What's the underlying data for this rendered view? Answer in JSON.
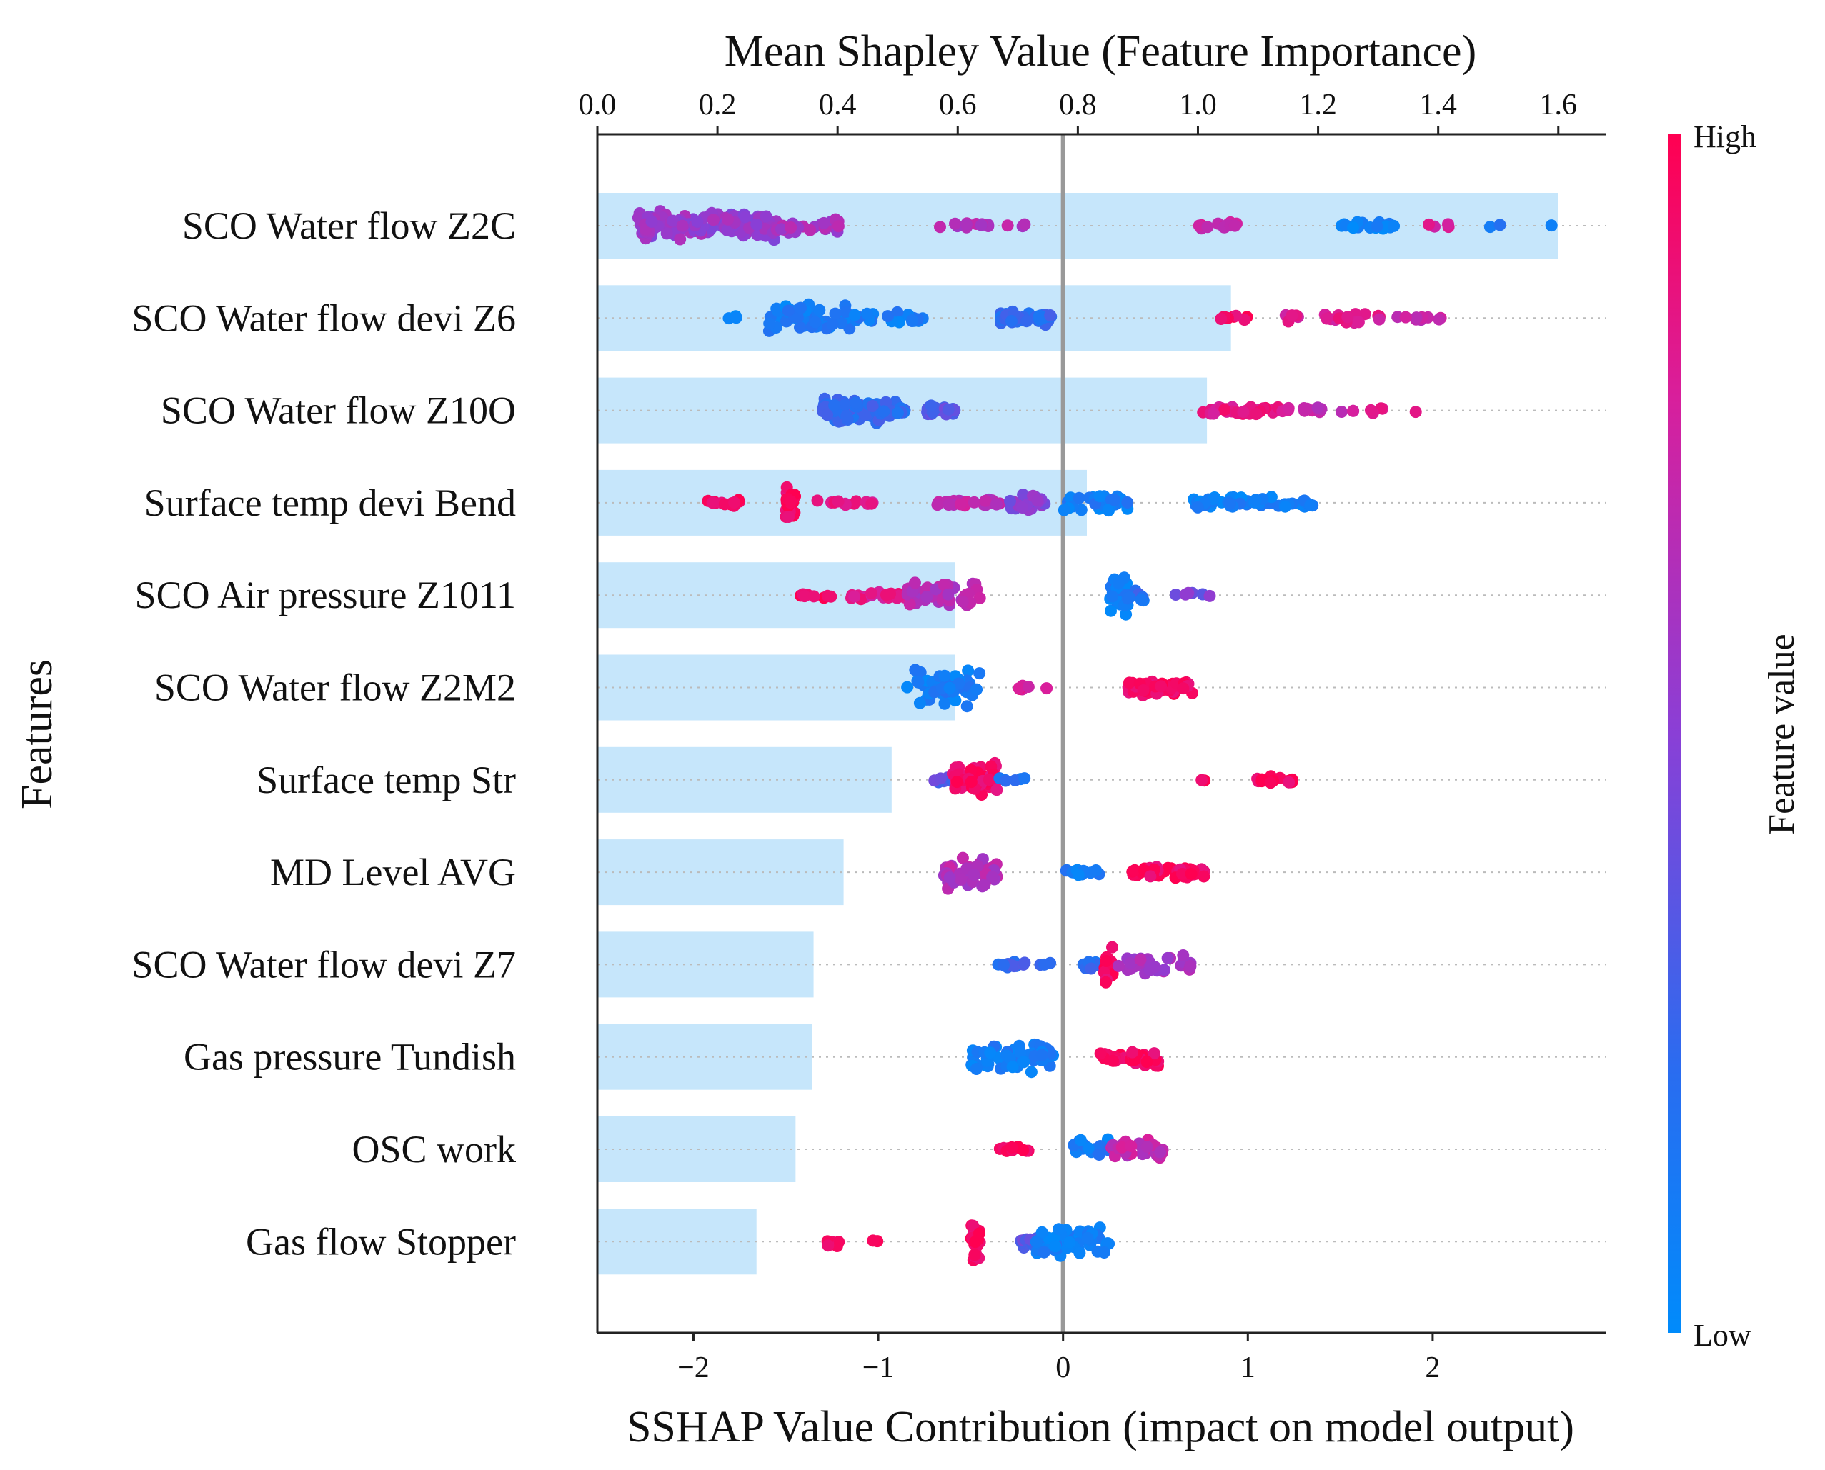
{
  "chart_data": {
    "type": "scatter",
    "variant": "shap-summary-beeswarm-with-mean-bars",
    "top_axis": {
      "label": "Mean Shapley Value (Feature Importance)",
      "ticks": [
        "0.0",
        "0.2",
        "0.4",
        "0.6",
        "0.8",
        "1.0",
        "1.2",
        "1.4",
        "1.6"
      ],
      "range": [
        0,
        1.68
      ]
    },
    "bottom_axis": {
      "label": "SSHAP Value Contribution (impact on model output)",
      "ticks": [
        "−2",
        "−1",
        "0",
        "1",
        "2"
      ],
      "range": [
        -2.52,
        2.94
      ]
    },
    "y_label": "Features",
    "colorbar": {
      "title": "Feature value",
      "high": "High",
      "low": "Low",
      "high_color": "#ff0051",
      "low_color": "#008bfb"
    },
    "bar_color": "#c6e6fb",
    "zero_line_color": "#999999",
    "features": [
      {
        "name": "SCO Water flow Z2C",
        "mean_importance": 1.6,
        "clusters": [
          {
            "x": [
              -2.3,
              -1.55
            ],
            "v": 0.55,
            "n": 130,
            "h": 0.5
          },
          {
            "x": [
              -1.55,
              -1.2
            ],
            "v": 0.6,
            "n": 25,
            "h": 0.3
          },
          {
            "x": [
              -0.7,
              -0.2
            ],
            "v": 0.65,
            "n": 14,
            "h": 0.1
          },
          {
            "x": [
              0.7,
              0.95
            ],
            "v": 0.75,
            "n": 14,
            "h": 0.12
          },
          {
            "x": [
              1.45,
              1.8
            ],
            "v": 0.05,
            "n": 18,
            "h": 0.15
          },
          {
            "x": [
              1.95,
              2.1
            ],
            "v": 0.75,
            "n": 4,
            "h": 0.1
          },
          {
            "x": [
              2.1,
              2.7
            ],
            "v": 0.15,
            "n": 3,
            "h": 0.05
          }
        ]
      },
      {
        "name": "SCO Water flow devi Z6",
        "mean_importance": 1.055,
        "clusters": [
          {
            "x": [
              -1.9,
              -1.75
            ],
            "v": 0.05,
            "n": 3,
            "h": 0.1
          },
          {
            "x": [
              -1.6,
              -1.15
            ],
            "v": 0.1,
            "n": 80,
            "h": 0.45
          },
          {
            "x": [
              -1.15,
              -0.75
            ],
            "v": 0.1,
            "n": 22,
            "h": 0.2
          },
          {
            "x": [
              -0.35,
              -0.05
            ],
            "v": 0.22,
            "n": 40,
            "h": 0.25
          },
          {
            "x": [
              0.85,
              1.0
            ],
            "v": 0.95,
            "n": 8,
            "h": 0.1
          },
          {
            "x": [
              1.2,
              1.75
            ],
            "v": 0.8,
            "n": 25,
            "h": 0.15
          },
          {
            "x": [
              1.75,
              2.05
            ],
            "v": 0.7,
            "n": 10,
            "h": 0.1
          }
        ]
      },
      {
        "name": "SCO Water flow Z10O",
        "mean_importance": 1.015,
        "clusters": [
          {
            "x": [
              -1.3,
              -1.0
            ],
            "v": 0.22,
            "n": 70,
            "h": 0.45
          },
          {
            "x": [
              -1.0,
              -0.85
            ],
            "v": 0.22,
            "n": 25,
            "h": 0.35
          },
          {
            "x": [
              -0.75,
              -0.55
            ],
            "v": 0.35,
            "n": 18,
            "h": 0.2
          },
          {
            "x": [
              0.75,
              1.2
            ],
            "v": 0.85,
            "n": 35,
            "h": 0.15
          },
          {
            "x": [
              1.2,
              1.65
            ],
            "v": 0.7,
            "n": 12,
            "h": 0.1
          },
          {
            "x": [
              1.65,
              2.08
            ],
            "v": 0.85,
            "n": 5,
            "h": 0.1
          }
        ]
      },
      {
        "name": "Surface temp devi Bend",
        "mean_importance": 0.815,
        "clusters": [
          {
            "x": [
              -1.95,
              -1.75
            ],
            "v": 0.95,
            "n": 14,
            "h": 0.12
          },
          {
            "x": [
              -1.5,
              -1.45
            ],
            "v": 0.95,
            "n": 30,
            "h": 0.5
          },
          {
            "x": [
              -1.35,
              -1.0
            ],
            "v": 0.85,
            "n": 12,
            "h": 0.1
          },
          {
            "x": [
              -0.7,
              -0.3
            ],
            "v": 0.7,
            "n": 22,
            "h": 0.15
          },
          {
            "x": [
              -0.3,
              -0.1
            ],
            "v": 0.5,
            "n": 30,
            "h": 0.3
          },
          {
            "x": [
              0.0,
              0.35
            ],
            "v": 0.1,
            "n": 35,
            "h": 0.28
          },
          {
            "x": [
              0.7,
              1.35
            ],
            "v": 0.08,
            "n": 50,
            "h": 0.2
          }
        ]
      },
      {
        "name": "SCO Air pressure Z1011",
        "mean_importance": 0.595,
        "clusters": [
          {
            "x": [
              -1.45,
              -1.25
            ],
            "v": 0.95,
            "n": 8,
            "h": 0.1
          },
          {
            "x": [
              -1.15,
              -0.85
            ],
            "v": 0.82,
            "n": 20,
            "h": 0.15
          },
          {
            "x": [
              -0.85,
              -0.45
            ],
            "v": 0.65,
            "n": 45,
            "h": 0.45
          },
          {
            "x": [
              0.25,
              0.35
            ],
            "v": 0.1,
            "n": 30,
            "h": 0.6
          },
          {
            "x": [
              0.35,
              0.5
            ],
            "v": 0.2,
            "n": 8,
            "h": 0.2
          },
          {
            "x": [
              0.6,
              0.95
            ],
            "v": 0.45,
            "n": 6,
            "h": 0.1
          }
        ]
      },
      {
        "name": "SCO Water flow Z2M2",
        "mean_importance": 0.595,
        "clusters": [
          {
            "x": [
              -0.85,
              -0.45
            ],
            "v": 0.1,
            "n": 55,
            "h": 0.6
          },
          {
            "x": [
              -0.25,
              -0.05
            ],
            "v": 0.8,
            "n": 6,
            "h": 0.12
          },
          {
            "x": [
              0.35,
              0.7
            ],
            "v": 0.95,
            "n": 45,
            "h": 0.25
          }
        ]
      },
      {
        "name": "Surface temp Str",
        "mean_importance": 0.49,
        "clusters": [
          {
            "x": [
              -0.7,
              -0.55
            ],
            "v": 0.35,
            "n": 8,
            "h": 0.15
          },
          {
            "x": [
              -0.6,
              -0.35
            ],
            "v": 0.92,
            "n": 60,
            "h": 0.55
          },
          {
            "x": [
              -0.35,
              -0.2
            ],
            "v": 0.2,
            "n": 6,
            "h": 0.12
          },
          {
            "x": [
              0.75,
              0.8
            ],
            "v": 0.95,
            "n": 2,
            "h": 0.05
          },
          {
            "x": [
              1.05,
              1.25
            ],
            "v": 0.95,
            "n": 14,
            "h": 0.12
          }
        ]
      },
      {
        "name": "MD Level AVG",
        "mean_importance": 0.41,
        "clusters": [
          {
            "x": [
              -0.65,
              -0.35
            ],
            "v": 0.65,
            "n": 50,
            "h": 0.6
          },
          {
            "x": [
              0.0,
              0.2
            ],
            "v": 0.1,
            "n": 14,
            "h": 0.15
          },
          {
            "x": [
              0.35,
              0.78
            ],
            "v": 0.95,
            "n": 45,
            "h": 0.2
          }
        ]
      },
      {
        "name": "SCO Water flow devi Z7",
        "mean_importance": 0.36,
        "clusters": [
          {
            "x": [
              -0.38,
              -0.05
            ],
            "v": 0.25,
            "n": 14,
            "h": 0.12
          },
          {
            "x": [
              0.1,
              0.25
            ],
            "v": 0.2,
            "n": 10,
            "h": 0.15
          },
          {
            "x": [
              0.22,
              0.27
            ],
            "v": 0.95,
            "n": 20,
            "h": 0.65
          },
          {
            "x": [
              0.27,
              0.7
            ],
            "v": 0.6,
            "n": 30,
            "h": 0.3
          }
        ]
      },
      {
        "name": "Gas pressure Tundish",
        "mean_importance": 0.357,
        "clusters": [
          {
            "x": [
              -0.5,
              -0.05
            ],
            "v": 0.1,
            "n": 60,
            "h": 0.55
          },
          {
            "x": [
              0.2,
              0.52
            ],
            "v": 0.95,
            "n": 35,
            "h": 0.3
          }
        ]
      },
      {
        "name": "OSC work",
        "mean_importance": 0.33,
        "clusters": [
          {
            "x": [
              -0.35,
              -0.1
            ],
            "v": 0.95,
            "n": 10,
            "h": 0.12
          },
          {
            "x": [
              0.05,
              0.25
            ],
            "v": 0.1,
            "n": 25,
            "h": 0.4
          },
          {
            "x": [
              0.2,
              0.55
            ],
            "v": 0.7,
            "n": 30,
            "h": 0.35
          }
        ]
      },
      {
        "name": "Gas flow Stopper",
        "mean_importance": 0.265,
        "clusters": [
          {
            "x": [
              -1.3,
              -1.2
            ],
            "v": 0.95,
            "n": 8,
            "h": 0.15
          },
          {
            "x": [
              -1.05,
              -1.0
            ],
            "v": 0.95,
            "n": 2,
            "h": 0.05
          },
          {
            "x": [
              -0.5,
              -0.45
            ],
            "v": 0.95,
            "n": 22,
            "h": 0.65
          },
          {
            "x": [
              -0.25,
              -0.1
            ],
            "v": 0.35,
            "n": 12,
            "h": 0.2
          },
          {
            "x": [
              -0.15,
              0.25
            ],
            "v": 0.08,
            "n": 55,
            "h": 0.5
          }
        ]
      }
    ]
  }
}
